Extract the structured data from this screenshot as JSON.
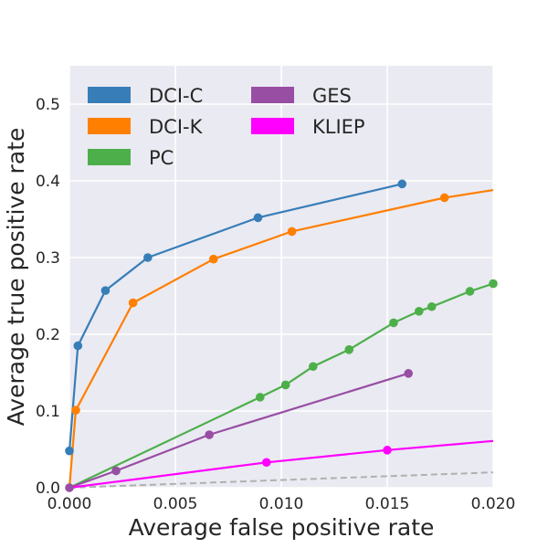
{
  "chart_data": {
    "type": "line",
    "title": "",
    "xlabel": "Average false positive rate",
    "ylabel": "Average true positive rate",
    "xlim": [
      0,
      0.02
    ],
    "ylim": [
      0,
      0.55
    ],
    "grid": true,
    "legend_position": "top-left",
    "x_ticks": [
      0.0,
      0.005,
      0.01,
      0.015,
      0.02
    ],
    "x_tick_labels": [
      "0.000",
      "0.005",
      "0.010",
      "0.015",
      "0.020"
    ],
    "y_ticks": [
      0.0,
      0.1,
      0.2,
      0.3,
      0.4,
      0.5
    ],
    "y_tick_labels": [
      "0.0",
      "0.1",
      "0.2",
      "0.3",
      "0.4",
      "0.5"
    ],
    "reference_line": {
      "name": "random",
      "x": [
        0,
        0.02
      ],
      "y": [
        0,
        0.02
      ],
      "color": "#b0b0b0",
      "style": "dashed"
    },
    "series": [
      {
        "name": "DCI-C",
        "color": "#377eb8",
        "x": [
          0.0,
          0.0004,
          0.0017,
          0.0037,
          0.0089,
          0.0157
        ],
        "y": [
          0.048,
          0.185,
          0.257,
          0.3,
          0.352,
          0.396
        ],
        "markers": [
          true,
          true,
          true,
          true,
          true,
          true
        ]
      },
      {
        "name": "DCI-K",
        "color": "#ff7f00",
        "x": [
          0.0,
          0.0003,
          0.003,
          0.0068,
          0.0105,
          0.0177,
          0.02
        ],
        "y": [
          0.0,
          0.101,
          0.241,
          0.298,
          0.334,
          0.378,
          0.388
        ],
        "markers": [
          false,
          true,
          true,
          true,
          true,
          true,
          false
        ]
      },
      {
        "name": "PC",
        "color": "#4daf4a",
        "x": [
          0.0,
          0.009,
          0.0102,
          0.0115,
          0.0132,
          0.0153,
          0.0165,
          0.0171,
          0.0189,
          0.02
        ],
        "y": [
          0.0,
          0.118,
          0.134,
          0.158,
          0.18,
          0.215,
          0.23,
          0.236,
          0.256,
          0.266
        ],
        "markers": [
          false,
          true,
          true,
          true,
          true,
          true,
          true,
          true,
          true,
          true
        ]
      },
      {
        "name": "GES",
        "color": "#984ea3",
        "x": [
          0.0,
          0.0022,
          0.0066,
          0.016
        ],
        "y": [
          0.0,
          0.022,
          0.069,
          0.149
        ],
        "markers": [
          true,
          true,
          true,
          true
        ]
      },
      {
        "name": "KLIEP",
        "color": "#ff00ff",
        "x": [
          0.0,
          0.0093,
          0.015,
          0.02
        ],
        "y": [
          0.0,
          0.033,
          0.049,
          0.061
        ],
        "markers": [
          false,
          true,
          true,
          false
        ]
      }
    ]
  }
}
